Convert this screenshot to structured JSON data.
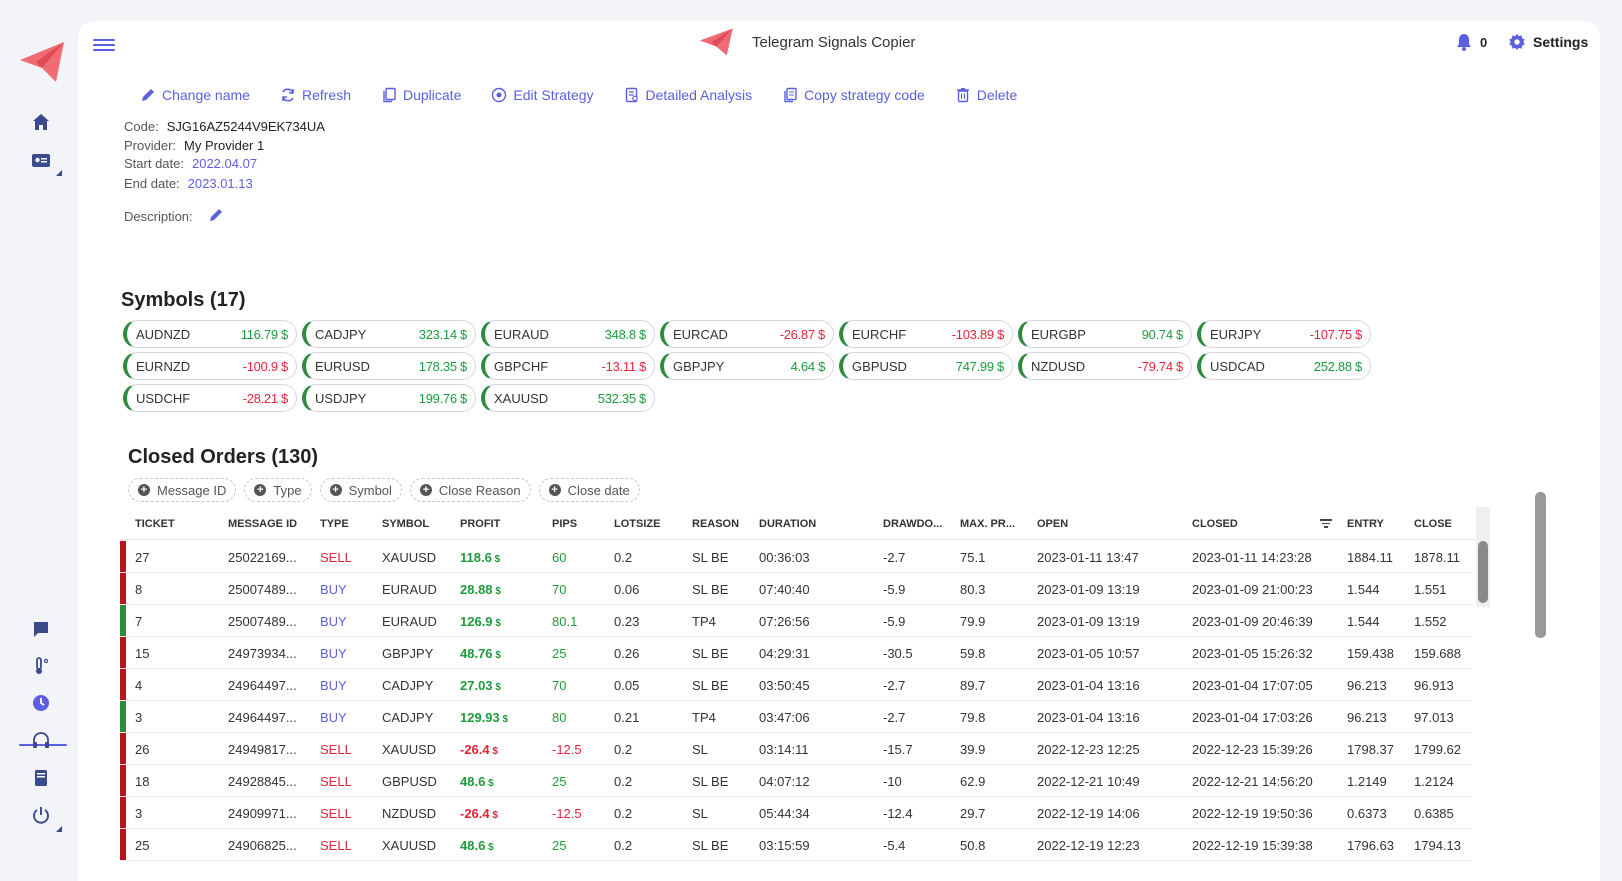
{
  "app": {
    "title": "Telegram Signals Copier",
    "notifications": "0",
    "settings_label": "Settings"
  },
  "colors": {
    "accent": "#5b5fe0",
    "positive": "#1e9b3d",
    "negative": "#e0263a",
    "brand": "#f06b73"
  },
  "toolbar": [
    {
      "label": "Change name",
      "icon": "pencil-icon"
    },
    {
      "label": "Refresh",
      "icon": "refresh-icon"
    },
    {
      "label": "Duplicate",
      "icon": "duplicate-icon"
    },
    {
      "label": "Edit Strategy",
      "icon": "target-icon"
    },
    {
      "label": "Detailed Analysis",
      "icon": "report-icon"
    },
    {
      "label": "Copy strategy code",
      "icon": "copy-icon"
    },
    {
      "label": "Delete",
      "icon": "trash-icon"
    }
  ],
  "info": {
    "code_label": "Code:",
    "code": "SJG16AZ5244V9EK734UA",
    "provider_label": "Provider:",
    "provider": "My Provider 1",
    "start_label": "Start date:",
    "start": "2022.04.07",
    "end_label": "End date:",
    "end": "2023.01.13",
    "desc_label": "Description:"
  },
  "symbols_title": "Symbols (17)",
  "symbols": [
    {
      "name": "AUDNZD",
      "profit": "116.79 $",
      "sign": "pos"
    },
    {
      "name": "CADJPY",
      "profit": "323.14 $",
      "sign": "pos"
    },
    {
      "name": "EURAUD",
      "profit": "348.8 $",
      "sign": "pos"
    },
    {
      "name": "EURCAD",
      "profit": "-26.87 $",
      "sign": "neg"
    },
    {
      "name": "EURCHF",
      "profit": "-103.89 $",
      "sign": "neg"
    },
    {
      "name": "EURGBP",
      "profit": "90.74 $",
      "sign": "pos"
    },
    {
      "name": "EURJPY",
      "profit": "-107.75 $",
      "sign": "neg"
    },
    {
      "name": "EURNZD",
      "profit": "-100.9 $",
      "sign": "neg"
    },
    {
      "name": "EURUSD",
      "profit": "178.35 $",
      "sign": "pos"
    },
    {
      "name": "GBPCHF",
      "profit": "-13.11 $",
      "sign": "neg"
    },
    {
      "name": "GBPJPY",
      "profit": "4.64 $",
      "sign": "pos"
    },
    {
      "name": "GBPUSD",
      "profit": "747.99 $",
      "sign": "pos"
    },
    {
      "name": "NZDUSD",
      "profit": "-79.74 $",
      "sign": "neg"
    },
    {
      "name": "USDCAD",
      "profit": "252.88 $",
      "sign": "pos"
    },
    {
      "name": "USDCHF",
      "profit": "-28.21 $",
      "sign": "neg"
    },
    {
      "name": "USDJPY",
      "profit": "199.76 $",
      "sign": "pos"
    },
    {
      "name": "XAUUSD",
      "profit": "532.35 $",
      "sign": "pos"
    }
  ],
  "orders_title": "Closed Orders (130)",
  "filters": [
    "Message ID",
    "Type",
    "Symbol",
    "Close Reason",
    "Close date"
  ],
  "columns": [
    "TICKET",
    "MESSAGE ID",
    "TYPE",
    "SYMBOL",
    "PROFIT",
    "PIPS",
    "LOTSIZE",
    "REASON",
    "DURATION",
    "DRAWDO...",
    "MAX. PR...",
    "OPEN",
    "CLOSED",
    "ENTRY",
    "CLOSE"
  ],
  "rows": [
    {
      "ticket": "27",
      "msg": "25022169...",
      "type": "SELL",
      "symbol": "XAUUSD",
      "profit": "118.6",
      "pips": "60",
      "lot": "0.2",
      "reason": "SL BE",
      "duration": "00:36:03",
      "dd": "-2.7",
      "mp": "75.1",
      "open": "2023-01-11 13:47",
      "closed": "2023-01-11 14:23:28",
      "entry": "1884.11",
      "close": "1878.11",
      "result": "loss"
    },
    {
      "ticket": "8",
      "msg": "25007489...",
      "type": "BUY",
      "symbol": "EURAUD",
      "profit": "28.88",
      "pips": "70",
      "lot": "0.06",
      "reason": "SL BE",
      "duration": "07:40:40",
      "dd": "-5.9",
      "mp": "80.3",
      "open": "2023-01-09 13:19",
      "closed": "2023-01-09 21:00:23",
      "entry": "1.544",
      "close": "1.551",
      "result": "loss"
    },
    {
      "ticket": "7",
      "msg": "25007489...",
      "type": "BUY",
      "symbol": "EURAUD",
      "profit": "126.9",
      "pips": "80.1",
      "lot": "0.23",
      "reason": "TP4",
      "duration": "07:26:56",
      "dd": "-5.9",
      "mp": "79.9",
      "open": "2023-01-09 13:19",
      "closed": "2023-01-09 20:46:39",
      "entry": "1.544",
      "close": "1.552",
      "result": "win"
    },
    {
      "ticket": "15",
      "msg": "24973934...",
      "type": "BUY",
      "symbol": "GBPJPY",
      "profit": "48.76",
      "pips": "25",
      "lot": "0.26",
      "reason": "SL BE",
      "duration": "04:29:31",
      "dd": "-30.5",
      "mp": "59.8",
      "open": "2023-01-05 10:57",
      "closed": "2023-01-05 15:26:32",
      "entry": "159.438",
      "close": "159.688",
      "result": "loss"
    },
    {
      "ticket": "4",
      "msg": "24964497...",
      "type": "BUY",
      "symbol": "CADJPY",
      "profit": "27.03",
      "pips": "70",
      "lot": "0.05",
      "reason": "SL BE",
      "duration": "03:50:45",
      "dd": "-2.7",
      "mp": "89.7",
      "open": "2023-01-04 13:16",
      "closed": "2023-01-04 17:07:05",
      "entry": "96.213",
      "close": "96.913",
      "result": "loss"
    },
    {
      "ticket": "3",
      "msg": "24964497...",
      "type": "BUY",
      "symbol": "CADJPY",
      "profit": "129.93",
      "pips": "80",
      "lot": "0.21",
      "reason": "TP4",
      "duration": "03:47:06",
      "dd": "-2.7",
      "mp": "79.8",
      "open": "2023-01-04 13:16",
      "closed": "2023-01-04 17:03:26",
      "entry": "96.213",
      "close": "97.013",
      "result": "win"
    },
    {
      "ticket": "26",
      "msg": "24949817...",
      "type": "SELL",
      "symbol": "XAUUSD",
      "profit": "-26.4",
      "pips": "-12.5",
      "lot": "0.2",
      "reason": "SL",
      "duration": "03:14:11",
      "dd": "-15.7",
      "mp": "39.9",
      "open": "2022-12-23 12:25",
      "closed": "2022-12-23 15:39:26",
      "entry": "1798.37",
      "close": "1799.62",
      "result": "loss"
    },
    {
      "ticket": "18",
      "msg": "24928845...",
      "type": "SELL",
      "symbol": "GBPUSD",
      "profit": "48.6",
      "pips": "25",
      "lot": "0.2",
      "reason": "SL BE",
      "duration": "04:07:12",
      "dd": "-10",
      "mp": "62.9",
      "open": "2022-12-21 10:49",
      "closed": "2022-12-21 14:56:20",
      "entry": "1.2149",
      "close": "1.2124",
      "result": "loss"
    },
    {
      "ticket": "3",
      "msg": "24909971...",
      "type": "SELL",
      "symbol": "NZDUSD",
      "profit": "-26.4",
      "pips": "-12.5",
      "lot": "0.2",
      "reason": "SL",
      "duration": "05:44:34",
      "dd": "-12.4",
      "mp": "29.7",
      "open": "2022-12-19 14:06",
      "closed": "2022-12-19 19:50:36",
      "entry": "0.6373",
      "close": "0.6385",
      "result": "loss"
    },
    {
      "ticket": "25",
      "msg": "24906825...",
      "type": "SELL",
      "symbol": "XAUUSD",
      "profit": "48.6",
      "pips": "25",
      "lot": "0.2",
      "reason": "SL BE",
      "duration": "03:15:59",
      "dd": "-5.4",
      "mp": "50.8",
      "open": "2022-12-19 12:23",
      "closed": "2022-12-19 15:39:38",
      "entry": "1796.63",
      "close": "1794.13",
      "result": "loss"
    }
  ]
}
